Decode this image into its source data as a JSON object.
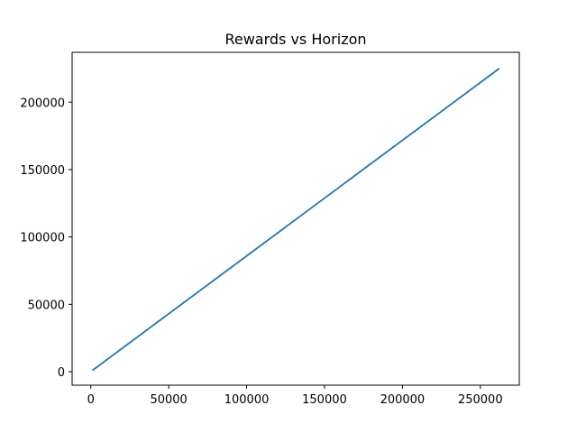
{
  "chart_data": {
    "type": "line",
    "title": "Rewards vs Horizon",
    "xlabel": "",
    "ylabel": "",
    "xlim": [
      -12000,
      275000
    ],
    "ylim": [
      -10000,
      237000
    ],
    "xticks": [
      0,
      50000,
      100000,
      150000,
      200000,
      250000
    ],
    "yticks": [
      0,
      50000,
      100000,
      150000,
      200000
    ],
    "grid": false,
    "series": [
      {
        "color": "#1f77b4",
        "x": [
          1000,
          262144
        ],
        "y": [
          1000,
          225000
        ]
      }
    ]
  }
}
